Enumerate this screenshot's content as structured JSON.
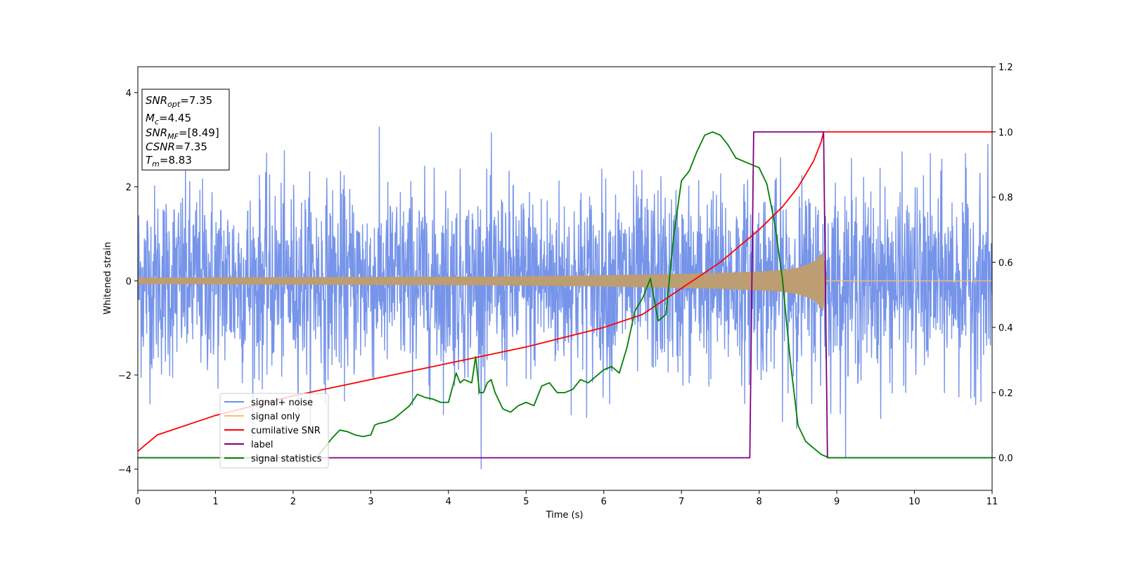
{
  "chart_data": {
    "type": "line",
    "title": "",
    "xlabel": "Time (s)",
    "ylabel": "Whitened strain",
    "xlim": [
      0,
      11
    ],
    "ylim": [
      -4.45,
      4.55
    ],
    "y2lim": [
      -0.1,
      1.2
    ],
    "x_ticks": [
      "0",
      "1",
      "2",
      "3",
      "4",
      "5",
      "6",
      "7",
      "8",
      "9",
      "10",
      "11"
    ],
    "y_ticks": [
      "−4",
      "−2",
      "0",
      "2",
      "4"
    ],
    "y2_ticks": [
      "0.0",
      "0.2",
      "0.4",
      "0.6",
      "0.8",
      "1.0",
      "1.2"
    ],
    "grid": false,
    "legend_placement": "lower-left",
    "info_box": {
      "lines": [
        {
          "sym": "SNR",
          "sub": "opt",
          "val": "=7.35"
        },
        {
          "sym": "M",
          "sub": "c",
          "val": "=4.45"
        },
        {
          "sym": "SNR",
          "sub": "MF",
          "val": "=[8.49]"
        },
        {
          "sym": "CSNR",
          "sub": "",
          "val": "=7.35"
        },
        {
          "sym": "T",
          "sub": "m",
          "val": "=8.83"
        }
      ]
    },
    "series": [
      {
        "name": "signal+ noise",
        "axis": "left",
        "color": "#6f8ee8",
        "description_values": {
          "noise_std": 1.0,
          "t_start": 0,
          "t_end": 11
        }
      },
      {
        "name": "signal only",
        "axis": "left",
        "color": "#ffbf6a",
        "envelope": {
          "x": [
            0,
            1,
            2,
            3,
            4,
            5,
            6,
            7,
            7.5,
            8,
            8.3,
            8.5,
            8.7,
            8.83,
            8.86,
            11
          ],
          "amp": [
            0.07,
            0.075,
            0.08,
            0.085,
            0.09,
            0.1,
            0.12,
            0.15,
            0.17,
            0.2,
            0.23,
            0.28,
            0.4,
            0.62,
            0,
            0
          ]
        }
      },
      {
        "name": "cumilative SNR",
        "axis": "right",
        "color": "#ff0000",
        "x": [
          0,
          0.25,
          0.5,
          1,
          1.5,
          2,
          2.5,
          3,
          3.5,
          4,
          4.5,
          5,
          5.5,
          6,
          6.5,
          7,
          7.5,
          8,
          8.3,
          8.5,
          8.7,
          8.8,
          8.83,
          9,
          10,
          11
        ],
        "y": [
          0.02,
          0.07,
          0.09,
          0.13,
          0.16,
          0.19,
          0.215,
          0.24,
          0.265,
          0.29,
          0.315,
          0.34,
          0.37,
          0.4,
          0.44,
          0.52,
          0.6,
          0.7,
          0.77,
          0.83,
          0.91,
          0.97,
          1.0,
          1.0,
          1.0,
          1.0
        ]
      },
      {
        "name": "label",
        "axis": "right",
        "color": "#800080",
        "x": [
          0,
          7.88,
          7.93,
          8.83,
          8.88,
          11
        ],
        "y": [
          0,
          0,
          1.0,
          1.0,
          0,
          0
        ]
      },
      {
        "name": "signal statistics",
        "axis": "right",
        "color": "#008000",
        "x": [
          0,
          2.3,
          2.4,
          2.5,
          2.6,
          2.7,
          2.8,
          2.9,
          3.0,
          3.05,
          3.1,
          3.2,
          3.3,
          3.4,
          3.5,
          3.6,
          3.7,
          3.8,
          3.9,
          4.0,
          4.1,
          4.15,
          4.2,
          4.3,
          4.35,
          4.4,
          4.45,
          4.5,
          4.55,
          4.6,
          4.7,
          4.8,
          4.9,
          5.0,
          5.1,
          5.2,
          5.3,
          5.4,
          5.5,
          5.6,
          5.7,
          5.8,
          5.9,
          6.0,
          6.1,
          6.2,
          6.3,
          6.4,
          6.5,
          6.6,
          6.7,
          6.8,
          6.9,
          7.0,
          7.1,
          7.2,
          7.3,
          7.4,
          7.5,
          7.6,
          7.7,
          7.8,
          7.9,
          8.0,
          8.1,
          8.2,
          8.3,
          8.4,
          8.5,
          8.6,
          8.7,
          8.8,
          8.9,
          9.0,
          10,
          11
        ],
        "y": [
          0.0,
          0.0,
          0.03,
          0.06,
          0.085,
          0.08,
          0.07,
          0.065,
          0.07,
          0.1,
          0.105,
          0.11,
          0.12,
          0.14,
          0.16,
          0.195,
          0.185,
          0.18,
          0.17,
          0.17,
          0.26,
          0.23,
          0.24,
          0.23,
          0.31,
          0.2,
          0.2,
          0.23,
          0.24,
          0.2,
          0.15,
          0.14,
          0.16,
          0.17,
          0.16,
          0.22,
          0.23,
          0.2,
          0.2,
          0.21,
          0.24,
          0.23,
          0.25,
          0.27,
          0.28,
          0.26,
          0.34,
          0.45,
          0.49,
          0.55,
          0.42,
          0.44,
          0.68,
          0.85,
          0.88,
          0.94,
          0.99,
          1.0,
          0.99,
          0.96,
          0.92,
          0.91,
          0.9,
          0.89,
          0.84,
          0.72,
          0.55,
          0.3,
          0.1,
          0.05,
          0.03,
          0.01,
          0.0,
          0.0,
          0.0,
          0.0
        ]
      }
    ]
  },
  "colors": {
    "noise": "#6f8ee8",
    "signal": "#ffbf6a",
    "overlap": "#bd9d72",
    "csnr": "#ff0000",
    "label": "#800080",
    "stats": "#008000"
  }
}
